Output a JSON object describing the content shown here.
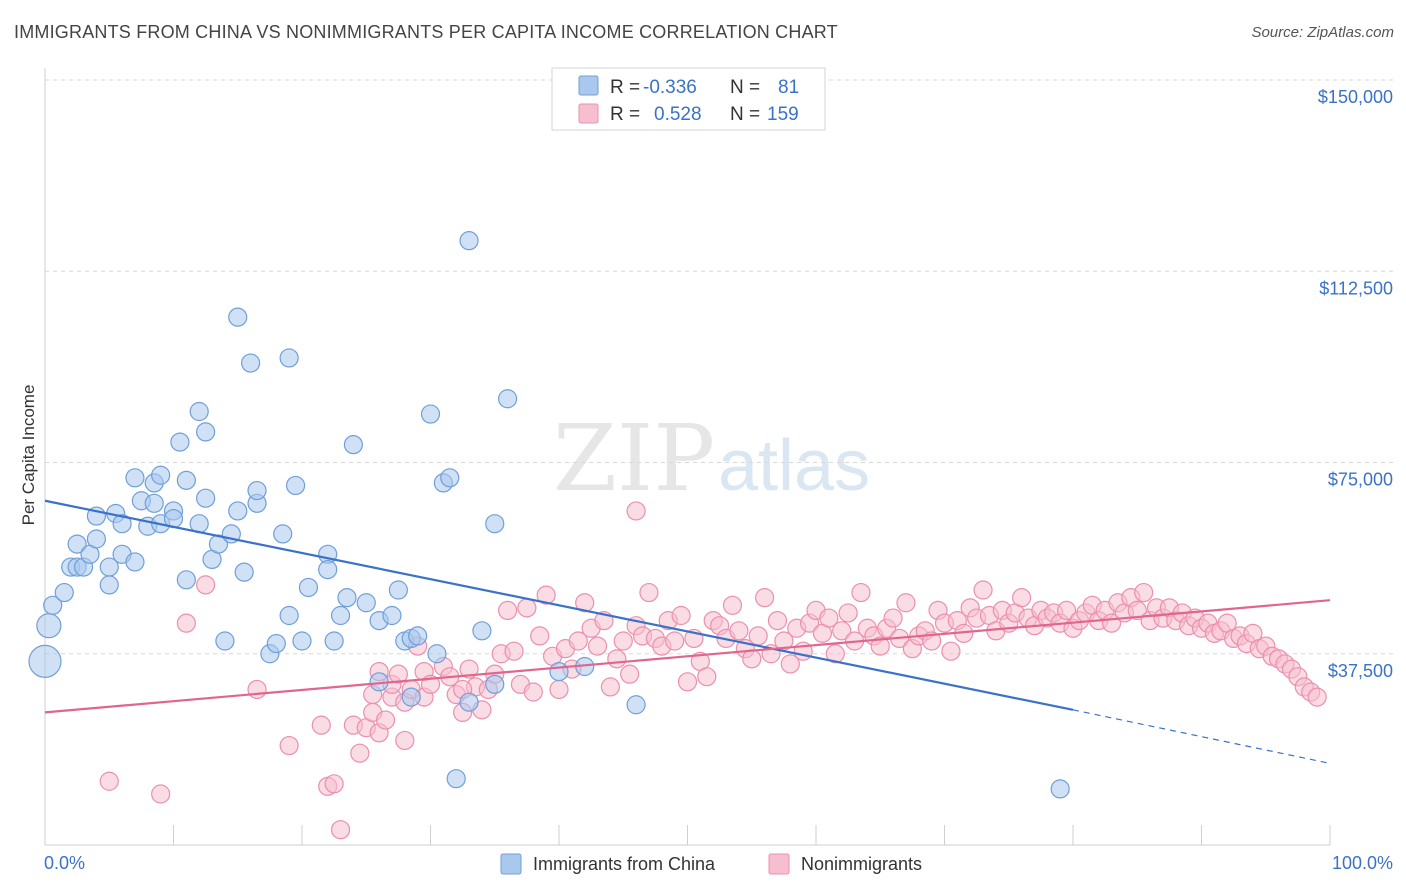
{
  "title": "IMMIGRANTS FROM CHINA VS NONIMMIGRANTS PER CAPITA INCOME CORRELATION CHART",
  "source": "Source: ZipAtlas.com",
  "watermark": {
    "zip": "ZIP",
    "atlas": "atlas"
  },
  "legend": {
    "rows": [
      {
        "r_label": "R =",
        "r_value": "-0.336",
        "n_label": "N =",
        "n_value": "81"
      },
      {
        "r_label": "R =",
        "r_value": "0.528",
        "n_label": "N =",
        "n_value": "159"
      }
    ]
  },
  "bottom_legend": [
    "Immigrants from China",
    "Nonimmigrants"
  ],
  "colors": {
    "blue_fill": "#aac8ee",
    "blue_stroke": "#6f9fd8",
    "blue_line": "#3a72c8",
    "pink_fill": "#f6bfd0",
    "pink_stroke": "#ec8fae",
    "pink_line": "#e0668e",
    "grid": "#d8d8d8",
    "axis_label": "#3a72c8"
  },
  "chart_data": {
    "type": "scatter",
    "title": "IMMIGRANTS FROM CHINA VS NONIMMIGRANTS PER CAPITA INCOME CORRELATION CHART",
    "xlabel": "",
    "ylabel": "Per Capita Income",
    "xlim": [
      0,
      100
    ],
    "ylim": [
      0,
      150000
    ],
    "x_tick_labels": [
      "0.0%",
      "100.0%"
    ],
    "y_ticks": [
      37500,
      75000,
      112500,
      150000
    ],
    "y_tick_labels": [
      "$37,500",
      "$75,000",
      "$112,500",
      "$150,000"
    ],
    "grid": true,
    "legend_position": "top-center",
    "series": [
      {
        "name": "Immigrants from China",
        "r": -0.336,
        "n": 81,
        "trend": {
          "x0": 0,
          "y0": 67500,
          "x1": 80,
          "y1": 26500,
          "dashed_to": 100,
          "dashed_y1": 16000
        },
        "points": [
          [
            0,
            36000
          ],
          [
            0.3,
            43000
          ],
          [
            0.6,
            47000
          ],
          [
            1.5,
            49500
          ],
          [
            2,
            54500
          ],
          [
            2.5,
            54500
          ],
          [
            2.5,
            59000
          ],
          [
            3,
            54500
          ],
          [
            3.5,
            57000
          ],
          [
            4,
            60000
          ],
          [
            4,
            64500
          ],
          [
            5,
            51000
          ],
          [
            5,
            54500
          ],
          [
            5.5,
            65000
          ],
          [
            6,
            57000
          ],
          [
            6,
            63000
          ],
          [
            7,
            55500
          ],
          [
            7,
            72000
          ],
          [
            7.5,
            67500
          ],
          [
            8,
            62500
          ],
          [
            8.5,
            71000
          ],
          [
            8.5,
            67000
          ],
          [
            9,
            72500
          ],
          [
            9,
            63000
          ],
          [
            10,
            65500
          ],
          [
            10,
            64000
          ],
          [
            10.5,
            79000
          ],
          [
            11,
            52000
          ],
          [
            11,
            71500
          ],
          [
            12,
            63000
          ],
          [
            12,
            85000
          ],
          [
            12.5,
            81000
          ],
          [
            12.5,
            68000
          ],
          [
            13,
            56000
          ],
          [
            13.5,
            59000
          ],
          [
            14,
            40000
          ],
          [
            14.5,
            61000
          ],
          [
            15,
            65500
          ],
          [
            15,
            103500
          ],
          [
            15.5,
            53500
          ],
          [
            16,
            94500
          ],
          [
            16.5,
            67000
          ],
          [
            16.5,
            69500
          ],
          [
            17.5,
            37500
          ],
          [
            18,
            39500
          ],
          [
            18.5,
            61000
          ],
          [
            19,
            95500
          ],
          [
            19,
            45000
          ],
          [
            19.5,
            70500
          ],
          [
            20,
            40000
          ],
          [
            20.5,
            50500
          ],
          [
            22,
            57000
          ],
          [
            22,
            54000
          ],
          [
            22.5,
            40000
          ],
          [
            23,
            45000
          ],
          [
            23.5,
            48500
          ],
          [
            24,
            78500
          ],
          [
            25,
            47500
          ],
          [
            26,
            32000
          ],
          [
            26,
            44000
          ],
          [
            27,
            45000
          ],
          [
            27.5,
            50000
          ],
          [
            28,
            40000
          ],
          [
            28.5,
            40500
          ],
          [
            28.5,
            29000
          ],
          [
            29,
            41000
          ],
          [
            30,
            84500
          ],
          [
            30.5,
            37500
          ],
          [
            31,
            71000
          ],
          [
            31.5,
            72000
          ],
          [
            32,
            13000
          ],
          [
            33,
            118500
          ],
          [
            33,
            28000
          ],
          [
            34,
            42000
          ],
          [
            35,
            31500
          ],
          [
            35,
            63000
          ],
          [
            36,
            87500
          ],
          [
            40,
            34000
          ],
          [
            42,
            35000
          ],
          [
            46,
            27500
          ],
          [
            79,
            11000
          ]
        ]
      },
      {
        "name": "Nonimmigrants",
        "r": 0.528,
        "n": 159,
        "trend": {
          "x0": 0,
          "y0": 26000,
          "x1": 100,
          "y1": 48000
        },
        "points": [
          [
            5,
            12500
          ],
          [
            9,
            10000
          ],
          [
            11,
            43500
          ],
          [
            12.5,
            51000
          ],
          [
            16.5,
            30500
          ],
          [
            19,
            19500
          ],
          [
            21.5,
            23500
          ],
          [
            22,
            11500
          ],
          [
            22.5,
            12000
          ],
          [
            24,
            23500
          ],
          [
            24.5,
            18000
          ],
          [
            25,
            23000
          ],
          [
            25.5,
            26000
          ],
          [
            25.5,
            29500
          ],
          [
            26,
            22000
          ],
          [
            26.5,
            24500
          ],
          [
            27,
            29000
          ],
          [
            27,
            31500
          ],
          [
            27.5,
            33500
          ],
          [
            28,
            20500
          ],
          [
            28,
            28000
          ],
          [
            28.5,
            30500
          ],
          [
            29,
            39000
          ],
          [
            29.5,
            34000
          ],
          [
            29.5,
            29000
          ],
          [
            30,
            31500
          ],
          [
            31,
            35000
          ],
          [
            31.5,
            33000
          ],
          [
            32,
            29500
          ],
          [
            32.5,
            26000
          ],
          [
            33,
            34500
          ],
          [
            33.5,
            31000
          ],
          [
            34,
            26500
          ],
          [
            34.5,
            30500
          ],
          [
            35,
            33500
          ],
          [
            35.5,
            37500
          ],
          [
            36,
            46000
          ],
          [
            36.5,
            38000
          ],
          [
            37,
            31500
          ],
          [
            37.5,
            46500
          ],
          [
            38,
            30000
          ],
          [
            38.5,
            41000
          ],
          [
            39,
            49000
          ],
          [
            39.5,
            37000
          ],
          [
            40,
            30500
          ],
          [
            40.5,
            38500
          ],
          [
            41,
            34500
          ],
          [
            41.5,
            40000
          ],
          [
            42,
            47500
          ],
          [
            42.5,
            42500
          ],
          [
            43,
            39000
          ],
          [
            43.5,
            44000
          ],
          [
            44,
            31000
          ],
          [
            44.5,
            36500
          ],
          [
            45,
            40000
          ],
          [
            45.5,
            33500
          ],
          [
            46,
            43000
          ],
          [
            46.5,
            41000
          ],
          [
            47,
            49500
          ],
          [
            47.5,
            40500
          ],
          [
            48,
            39000
          ],
          [
            48.5,
            44000
          ],
          [
            49,
            40000
          ],
          [
            49.5,
            45000
          ],
          [
            50,
            32000
          ],
          [
            50.5,
            40500
          ],
          [
            51,
            36000
          ],
          [
            51.5,
            33000
          ],
          [
            52,
            44000
          ],
          [
            52.5,
            43000
          ],
          [
            53,
            40500
          ],
          [
            53.5,
            47000
          ],
          [
            54,
            42000
          ],
          [
            54.5,
            38500
          ],
          [
            55,
            36500
          ],
          [
            55.5,
            41000
          ],
          [
            56,
            48500
          ],
          [
            56.5,
            37500
          ],
          [
            57,
            44000
          ],
          [
            57.5,
            40000
          ],
          [
            58,
            35500
          ],
          [
            58.5,
            42500
          ],
          [
            59,
            38000
          ],
          [
            59.5,
            43500
          ],
          [
            60,
            46000
          ],
          [
            60.5,
            41500
          ],
          [
            61,
            44500
          ],
          [
            61.5,
            37500
          ],
          [
            62,
            42000
          ],
          [
            62.5,
            45500
          ],
          [
            63,
            40000
          ],
          [
            63.5,
            49500
          ],
          [
            64,
            42500
          ],
          [
            64.5,
            41000
          ],
          [
            65,
            39000
          ],
          [
            65.5,
            42500
          ],
          [
            66,
            44500
          ],
          [
            66.5,
            40500
          ],
          [
            67,
            47500
          ],
          [
            67.5,
            38500
          ],
          [
            68,
            41000
          ],
          [
            68.5,
            42000
          ],
          [
            69,
            40000
          ],
          [
            69.5,
            46000
          ],
          [
            70,
            43500
          ],
          [
            70.5,
            38000
          ],
          [
            71,
            44000
          ],
          [
            71.5,
            41500
          ],
          [
            72,
            46500
          ],
          [
            72.5,
            44500
          ],
          [
            73,
            50000
          ],
          [
            73.5,
            45000
          ],
          [
            74,
            42000
          ],
          [
            74.5,
            46000
          ],
          [
            75,
            43500
          ],
          [
            75.5,
            45500
          ],
          [
            76,
            48500
          ],
          [
            76.5,
            44500
          ],
          [
            77,
            43000
          ],
          [
            77.5,
            46000
          ],
          [
            78,
            44500
          ],
          [
            78.5,
            45500
          ],
          [
            79,
            43500
          ],
          [
            79.5,
            46000
          ],
          [
            80,
            42500
          ],
          [
            80.5,
            44000
          ],
          [
            81,
            45500
          ],
          [
            81.5,
            47000
          ],
          [
            82,
            44000
          ],
          [
            82.5,
            46000
          ],
          [
            83,
            43500
          ],
          [
            83.5,
            47500
          ],
          [
            84,
            45500
          ],
          [
            84.5,
            48500
          ],
          [
            85,
            46000
          ],
          [
            85.5,
            49500
          ],
          [
            86,
            44000
          ],
          [
            86.5,
            46500
          ],
          [
            87,
            44500
          ],
          [
            87.5,
            46500
          ],
          [
            88,
            44000
          ],
          [
            88.5,
            45500
          ],
          [
            89,
            43000
          ],
          [
            89.5,
            44500
          ],
          [
            90,
            42500
          ],
          [
            90.5,
            43500
          ],
          [
            91,
            41500
          ],
          [
            91.5,
            42000
          ],
          [
            92,
            43500
          ],
          [
            92.5,
            40500
          ],
          [
            93,
            41000
          ],
          [
            93.5,
            39500
          ],
          [
            94,
            41500
          ],
          [
            94.5,
            38500
          ],
          [
            95,
            39000
          ],
          [
            95.5,
            37000
          ],
          [
            96,
            36500
          ],
          [
            96.5,
            35500
          ],
          [
            97,
            34500
          ],
          [
            97.5,
            33000
          ],
          [
            98,
            31000
          ],
          [
            98.5,
            30000
          ],
          [
            99,
            29000
          ],
          [
            32.5,
            30500
          ],
          [
            26,
            34000
          ],
          [
            23,
            3000
          ],
          [
            46,
            65500
          ]
        ]
      }
    ]
  }
}
